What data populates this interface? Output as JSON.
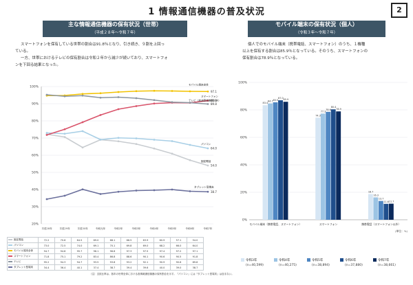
{
  "header": {
    "title": "1 情報通信機器の普及状況",
    "page_number": "2"
  },
  "left": {
    "banner_title": "主な情報通信機器の保有状況（世帯）",
    "banner_sub": "（平成２８年～令和７年）",
    "text_lines": [
      "スマートフォンを保有している世帯の割合は91.8％となり、引き続き、９割を上回っ",
      "ている。",
      "一方、世帯におけるテレビの保有割合は令和２年から減少が続いており、スマートフォ",
      "ンを下回る結果となった。"
    ],
    "footnote": "（注）当該比率は、各年の世帯全体における各情報通信機器の保有割合を示す。「パソコン」には「タブレット型端末」は含まない。"
  },
  "right": {
    "banner_title": "モバイル端末の保有状況（個人）",
    "banner_sub": "（令和３年～令和７年）",
    "text_lines": [
      "個人でのモバイル端末（携帯電話、スマートフォン）のうち、１機種",
      "以上を保有する割合は85.9％となっている。そのうち、スマートフォンの",
      "保有割合は78.9％となっている。"
    ]
  },
  "chart_data": [
    {
      "type": "line",
      "x": [
        "平成28年",
        "平成29年",
        "平成30年",
        "令和元年",
        "令和2年",
        "令和3年",
        "令和4年",
        "令和5年",
        "令和6年",
        "令和7年"
      ],
      "ylim": [
        20,
        100
      ],
      "yticks": [
        "20%",
        "30%",
        "40%",
        "50%",
        "60%",
        "70%",
        "80%",
        "90%",
        "100%"
      ],
      "series": [
        {
          "name": "固定電話",
          "color": "#c8ccd0",
          "values": [
            72.2,
            70.6,
            64.5,
            69.0,
            68.1,
            66.5,
            63.9,
            60.9,
            57.1,
            54.0
          ],
          "end_label": "54.0"
        },
        {
          "name": "パソコン",
          "color": "#a8cfe6",
          "values": [
            73.0,
            72.5,
            74.0,
            69.1,
            70.1,
            69.8,
            69.0,
            68.2,
            66.0,
            64.0
          ],
          "end_label": "64.0"
        },
        {
          "name": "モバイル端末全体",
          "color": "#f2c200",
          "values": [
            94.7,
            94.8,
            95.7,
            96.1,
            96.8,
            97.3,
            97.5,
            97.4,
            97.2,
            97.1
          ],
          "end_label": "97.1"
        },
        {
          "name": "スマートフォン",
          "color": "#d9536a",
          "values": [
            71.8,
            75.1,
            79.2,
            83.4,
            86.8,
            88.6,
            90.1,
            90.6,
            90.5,
            91.8
          ],
          "end_label": "91.8"
        },
        {
          "name": "テレビ",
          "color": "#8c96a0",
          "values": [
            95.2,
            94.3,
            94.7,
            93.5,
            93.8,
            93.2,
            92.1,
            90.9,
            90.6,
            89.8
          ],
          "end_label": "89.8"
        },
        {
          "name": "タブレット型端末",
          "color": "#6a6f9c",
          "values": [
            34.4,
            36.4,
            40.1,
            37.4,
            38.7,
            39.4,
            39.6,
            40.0,
            39.0,
            38.7
          ],
          "end_label": "38.7"
        }
      ],
      "line_labels": [
        "モバイル端末全体",
        "テレビ（放送受信機能付き）",
        "スマートフォン",
        "パソコン",
        "固定電話",
        "タブレット型端末"
      ]
    },
    {
      "type": "bar",
      "categories": [
        "モバイル端末（携帯電話、スマートフォン）",
        "スマートフォン",
        "携帯電話（スマートフォン以外）"
      ],
      "ylim": [
        0,
        100
      ],
      "yticks": [
        "0%",
        "20%",
        "40%",
        "60%",
        "80%",
        "100%"
      ],
      "series": [
        {
          "name": "令和3年",
          "color": "#d6e6f4",
          "values": [
            83.4,
            74.3,
            18.7
          ]
        },
        {
          "name": "令和4年",
          "color": "#9cc4e4",
          "values": [
            84.7,
            77.3,
            16.3
          ]
        },
        {
          "name": "令和5年",
          "color": "#4e86c2",
          "values": [
            85.5,
            78.6,
            13.7
          ]
        },
        {
          "name": "令和6年",
          "color": "#1f4e8c",
          "values": [
            87.0,
            80.4,
            11.6
          ]
        },
        {
          "name": "令和7年",
          "color": "#0b2a5c",
          "values": [
            85.9,
            78.9,
            11.7
          ]
        }
      ],
      "legend_ns": [
        "(n=40,599)",
        "(n=40,275)",
        "(n=38,894)",
        "(n=37,880)",
        "(n=38,661)"
      ],
      "unit_note": "(単位：%)"
    }
  ]
}
